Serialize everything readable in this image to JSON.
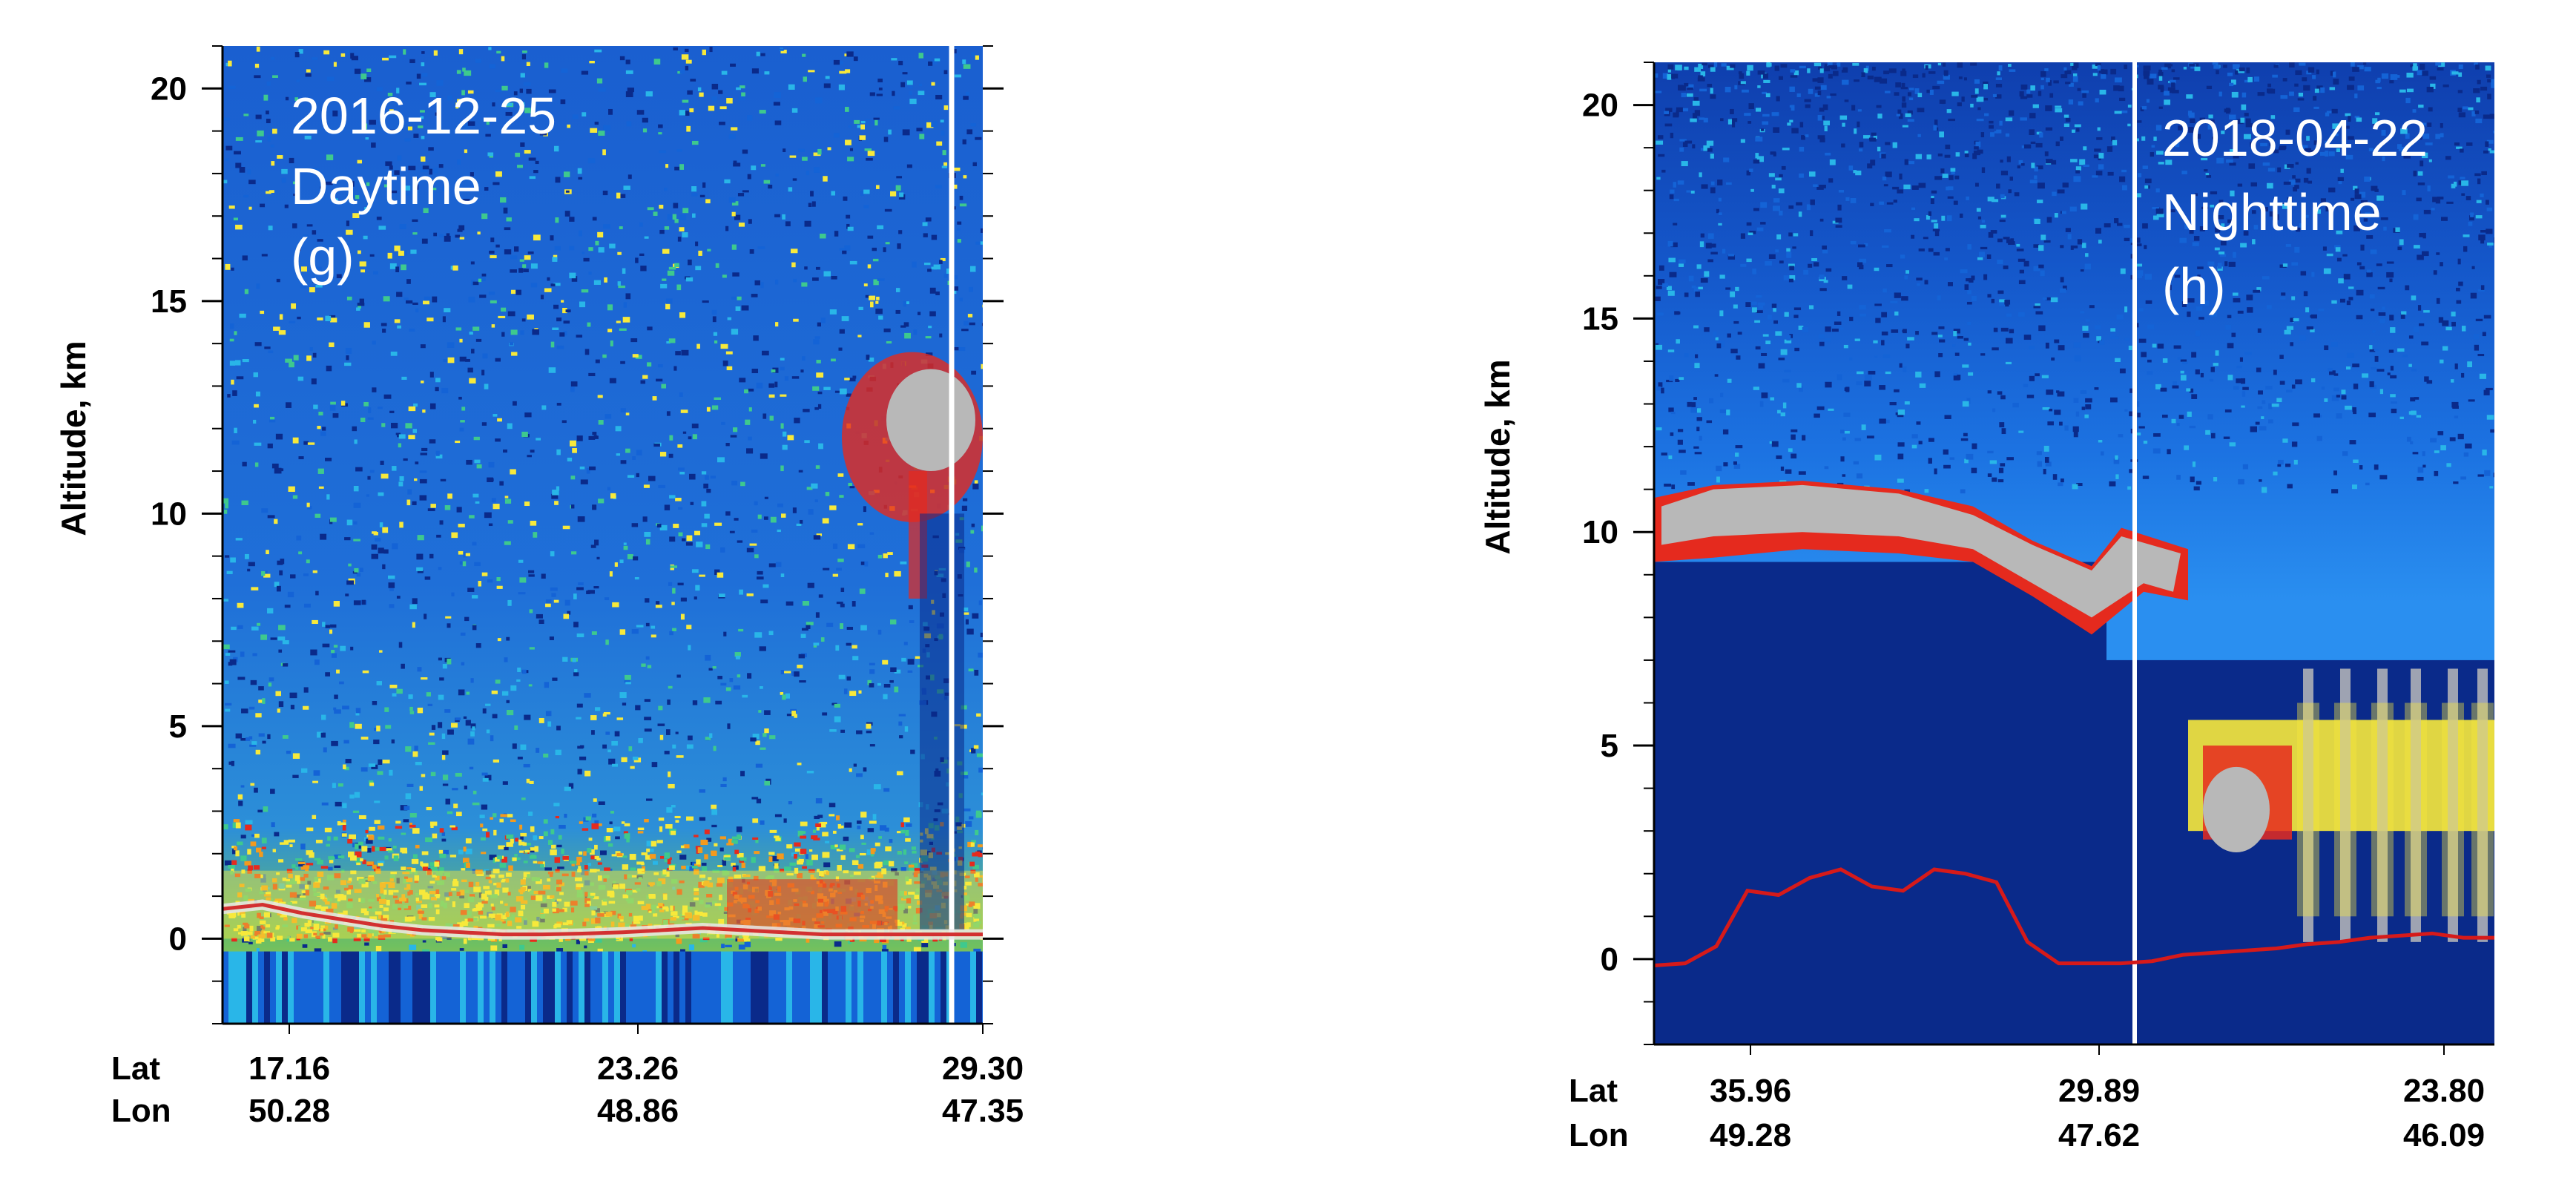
{
  "chart_data": [
    {
      "type": "heatmap",
      "panel": "g",
      "annotation": [
        "2016-12-25",
        "Daytime",
        "(g)"
      ],
      "ylabel": "Altitude, km",
      "ylim": [
        -2,
        21
      ],
      "yticks": [
        0,
        5,
        10,
        15,
        20
      ],
      "x_row_labels": [
        "Lat",
        "Lon"
      ],
      "x_ticks": [
        {
          "lat": "17.16",
          "lon": "50.28"
        },
        {
          "lat": "23.26",
          "lon": "48.86"
        },
        {
          "lat": "29.30",
          "lon": "47.35"
        }
      ],
      "surface_line_km": [
        0.7,
        0.8,
        0.6,
        0.45,
        0.3,
        0.2,
        0.15,
        0.1,
        0.1,
        0.12,
        0.15,
        0.2,
        0.25,
        0.2,
        0.15,
        0.1,
        0.1,
        0.1,
        0.1,
        0.1
      ],
      "cloud_top_km": 13,
      "cloud_base_km": 8,
      "colors": {
        "deep": "#0a2a8a",
        "blue": "#1463d6",
        "cyan": "#29b6e8",
        "green": "#3ec98e",
        "yellow": "#f7e93b",
        "orange": "#f39a1e",
        "red": "#e52a1e",
        "gray": "#b8b8b8",
        "white": "#f2f2f2",
        "surface": "#d23030"
      }
    },
    {
      "type": "heatmap",
      "panel": "h",
      "annotation": [
        "2018-04-22",
        "Nighttime",
        "(h)"
      ],
      "ylabel": "Altitude, km",
      "ylim": [
        -2,
        21
      ],
      "yticks": [
        0,
        5,
        10,
        15,
        20
      ],
      "x_row_labels": [
        "Lat",
        "Lon"
      ],
      "x_ticks": [
        {
          "lat": "35.96",
          "lon": "49.28"
        },
        {
          "lat": "29.89",
          "lon": "47.62"
        },
        {
          "lat": "23.80",
          "lon": "46.09"
        }
      ],
      "surface_line_km": [
        -0.15,
        -0.1,
        0.3,
        1.6,
        1.5,
        1.9,
        2.1,
        1.7,
        1.6,
        2.1,
        2.0,
        1.8,
        0.4,
        -0.1,
        -0.1,
        -0.1,
        -0.05,
        0.1,
        0.15,
        0.2,
        0.25,
        0.35,
        0.4,
        0.5,
        0.55,
        0.6,
        0.5,
        0.5
      ],
      "cirrus_top_km": 11.3,
      "cirrus_base_km": 9.3,
      "lower_cloud_top_km": 7,
      "colors": {
        "deep": "#0a2a8a",
        "blue": "#1463d6",
        "cyan": "#29b6e8",
        "green": "#3ec98e",
        "yellow": "#f7e93b",
        "orange": "#f39a1e",
        "red": "#e52a1e",
        "gray": "#b8b8b8",
        "white": "#f2f2f2",
        "surface": "#d61a1a"
      }
    }
  ]
}
